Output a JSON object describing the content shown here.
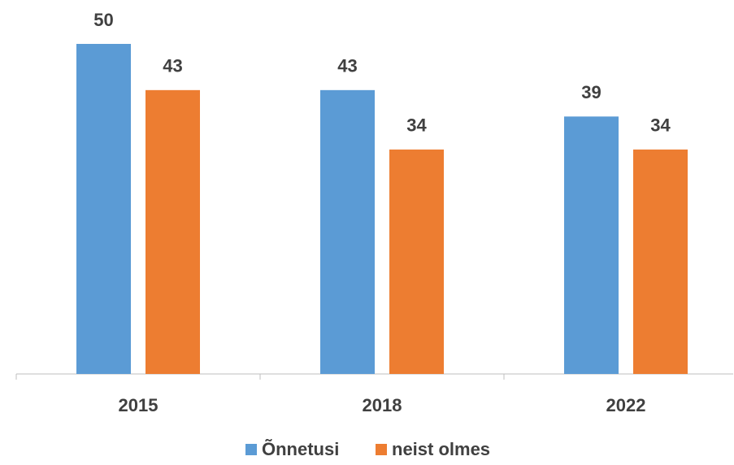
{
  "chart_data": {
    "type": "bar",
    "categories": [
      "2015",
      "2018",
      "2022"
    ],
    "series": [
      {
        "name": "Õnnetusi",
        "color": "#5b9bd5",
        "values": [
          50,
          43,
          39
        ]
      },
      {
        "name": "neist olmes",
        "color": "#ed7d31",
        "values": [
          43,
          34,
          34
        ]
      }
    ],
    "ylim": [
      0,
      50
    ],
    "legend": "bottom"
  }
}
